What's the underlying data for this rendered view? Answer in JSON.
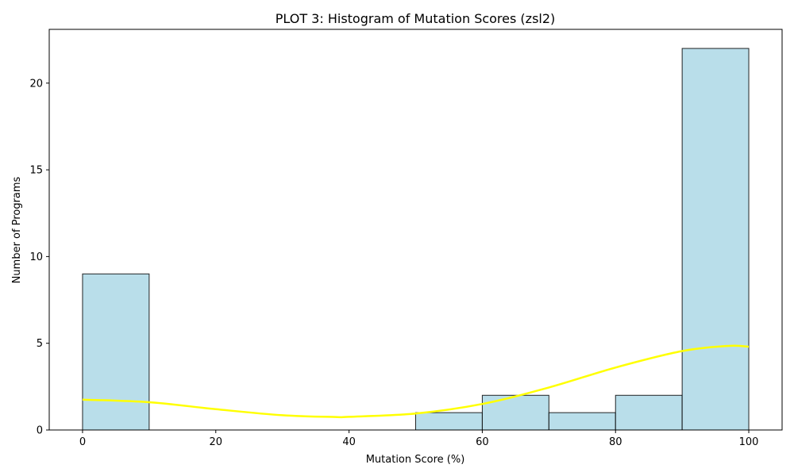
{
  "chart_data": {
    "type": "bar",
    "title": "PLOT 3: Histogram of Mutation Scores (zsl2)",
    "xlabel": "Mutation Score (%)",
    "ylabel": "Number of Programs",
    "xlim": [
      -5,
      105
    ],
    "ylim": [
      0,
      23.1
    ],
    "bins": [
      {
        "x0": 0,
        "x1": 10,
        "value": 9
      },
      {
        "x0": 10,
        "x1": 20,
        "value": 0
      },
      {
        "x0": 20,
        "x1": 30,
        "value": 0
      },
      {
        "x0": 30,
        "x1": 40,
        "value": 0
      },
      {
        "x0": 40,
        "x1": 50,
        "value": 0
      },
      {
        "x0": 50,
        "x1": 60,
        "value": 1
      },
      {
        "x0": 60,
        "x1": 70,
        "value": 2
      },
      {
        "x0": 70,
        "x1": 80,
        "value": 1
      },
      {
        "x0": 80,
        "x1": 90,
        "value": 2
      },
      {
        "x0": 90,
        "x1": 100,
        "value": 22
      }
    ],
    "kde": {
      "x": [
        0,
        10,
        20,
        30,
        38,
        40,
        50,
        60,
        70,
        80,
        90,
        97,
        100
      ],
      "y": [
        1.75,
        1.6,
        1.2,
        0.85,
        0.75,
        0.76,
        0.95,
        1.5,
        2.45,
        3.6,
        4.55,
        4.85,
        4.8
      ]
    },
    "xticks": [
      0,
      20,
      40,
      60,
      80,
      100
    ],
    "yticks": [
      0,
      5,
      10,
      15,
      20
    ],
    "grid": false,
    "colors": {
      "bar_fill": "#add8e6",
      "bar_edge": "#000000",
      "kde_line": "#ffff00"
    }
  }
}
